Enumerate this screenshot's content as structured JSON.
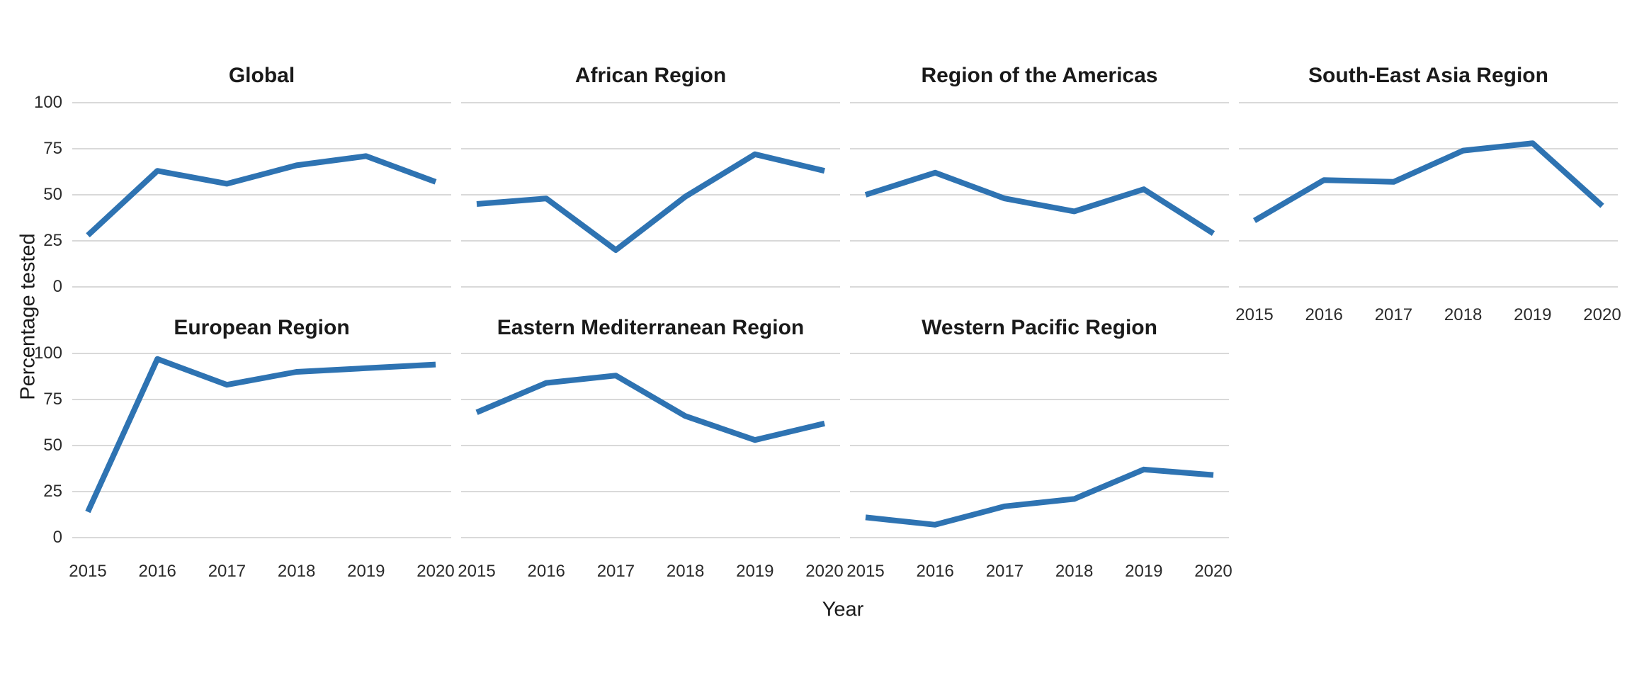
{
  "chart_data": {
    "type": "line",
    "title": "",
    "xlabel": "Year",
    "ylabel": "Percentage tested",
    "x": [
      2015,
      2016,
      2017,
      2018,
      2019,
      2020
    ],
    "x_tick_labels": [
      "2015",
      "2016",
      "2017",
      "2018",
      "2019",
      "2020"
    ],
    "y_tick_labels": [
      "100",
      "75",
      "50",
      "25",
      "0"
    ],
    "y_ticks": [
      100,
      75,
      50,
      25,
      0
    ],
    "ylim": [
      0,
      100
    ],
    "grid": "horizontal-only",
    "legend": "none",
    "facet_layout": "2 rows x 4 columns, row-major, last cell empty",
    "series": [
      {
        "name": "Global",
        "values": [
          28,
          63,
          56,
          66,
          71,
          57
        ]
      },
      {
        "name": "African Region",
        "values": [
          45,
          48,
          20,
          49,
          72,
          63
        ]
      },
      {
        "name": "Region of the Americas",
        "values": [
          50,
          62,
          48,
          41,
          53,
          29
        ]
      },
      {
        "name": "South-East Asia Region",
        "values": [
          36,
          58,
          57,
          74,
          78,
          44
        ]
      },
      {
        "name": "European Region",
        "values": [
          14,
          97,
          83,
          90,
          92,
          94
        ]
      },
      {
        "name": "Eastern Mediterranean Region",
        "values": [
          68,
          84,
          88,
          66,
          53,
          62
        ]
      },
      {
        "name": "Western Pacific Region",
        "values": [
          11,
          7,
          17,
          21,
          37,
          34
        ]
      }
    ],
    "colors": {
      "line": "#2E73B2",
      "gridline": "#D9D9D9",
      "title_text": "#1a1a1a",
      "tick_text": "#2b2b2b",
      "background": "#ffffff"
    }
  }
}
